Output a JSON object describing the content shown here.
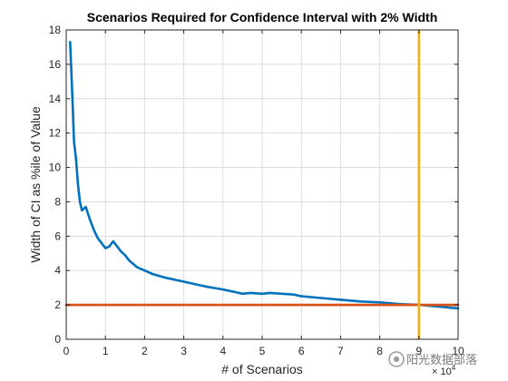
{
  "chart_data": {
    "type": "line",
    "title": "Scenarios Required for Confidence Interval with 2% Width",
    "xlabel": "# of Scenarios",
    "ylabel": "Width of CI as %ile of Value",
    "x_exponent_label": "× 10",
    "x_exponent_power": "4",
    "xlim": [
      0,
      100000
    ],
    "ylim": [
      0,
      18
    ],
    "x_ticks": [
      0,
      10000,
      20000,
      30000,
      40000,
      50000,
      60000,
      70000,
      80000,
      90000,
      100000
    ],
    "x_tick_labels": [
      "0",
      "1",
      "2",
      "3",
      "4",
      "5",
      "6",
      "7",
      "8",
      "9",
      "10"
    ],
    "y_ticks": [
      0,
      2,
      4,
      6,
      8,
      10,
      12,
      14,
      16,
      18
    ],
    "y_tick_labels": [
      "0",
      "2",
      "4",
      "6",
      "8",
      "10",
      "12",
      "14",
      "16",
      "18"
    ],
    "grid": true,
    "series": [
      {
        "color": "#0072BD",
        "x": [
          1000,
          1500,
          2000,
          2500,
          3000,
          3500,
          4000,
          4500,
          5000,
          6000,
          7000,
          8000,
          9000,
          10000,
          11000,
          12000,
          13000,
          14000,
          15000,
          16000,
          18000,
          20000,
          22000,
          25000,
          28000,
          30000,
          33000,
          36000,
          40000,
          43000,
          45000,
          47000,
          50000,
          52000,
          55000,
          58000,
          60000,
          65000,
          70000,
          75000,
          80000,
          85000,
          90000,
          95000,
          100000
        ],
        "y": [
          17.3,
          14.5,
          11.5,
          10.5,
          9.0,
          8.0,
          7.5,
          7.6,
          7.7,
          7.0,
          6.4,
          5.9,
          5.6,
          5.3,
          5.4,
          5.7,
          5.4,
          5.1,
          4.9,
          4.6,
          4.2,
          4.0,
          3.8,
          3.6,
          3.45,
          3.35,
          3.2,
          3.05,
          2.9,
          2.75,
          2.65,
          2.7,
          2.65,
          2.7,
          2.65,
          2.6,
          2.5,
          2.4,
          2.3,
          2.2,
          2.15,
          2.05,
          2.0,
          1.9,
          1.8
        ]
      },
      {
        "color": "#D95319",
        "x": [
          0,
          100000
        ],
        "y": [
          2,
          2
        ]
      }
    ],
    "vertical_line": {
      "x": 90000,
      "color": "#EDB120"
    }
  },
  "watermark": {
    "text": "阳光数据部落"
  }
}
